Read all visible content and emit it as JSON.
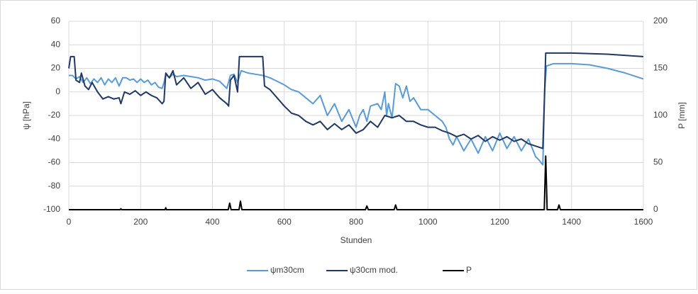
{
  "chart_data": {
    "type": "line",
    "xlabel": "Stunden",
    "ylabel": "ψ [hPa]",
    "y2label": "P [mm]",
    "xlim": [
      0,
      1600
    ],
    "xticks": [
      0,
      200,
      400,
      600,
      800,
      1000,
      1200,
      1400,
      1600
    ],
    "ylim": [
      -100,
      60
    ],
    "yticks": [
      -100,
      -80,
      -60,
      -40,
      -20,
      0,
      20,
      40,
      60
    ],
    "y2lim": [
      0,
      200
    ],
    "y2ticks": [
      0,
      50,
      100,
      150,
      200
    ],
    "grid": true,
    "legend": "bottom",
    "series": [
      {
        "name": "ψm30cm",
        "color": "#5b9bd5",
        "x": [
          0,
          10,
          20,
          30,
          40,
          50,
          60,
          70,
          80,
          90,
          100,
          110,
          120,
          130,
          140,
          150,
          160,
          170,
          180,
          190,
          200,
          210,
          220,
          230,
          240,
          250,
          260,
          265,
          270,
          280,
          290,
          300,
          320,
          340,
          360,
          380,
          400,
          420,
          440,
          450,
          460,
          470,
          480,
          500,
          520,
          540,
          560,
          580,
          600,
          620,
          640,
          660,
          680,
          700,
          720,
          740,
          760,
          780,
          800,
          810,
          820,
          830,
          840,
          860,
          870,
          880,
          885,
          890,
          900,
          910,
          920,
          930,
          940,
          950,
          960,
          980,
          1000,
          1020,
          1040,
          1050,
          1060,
          1070,
          1080,
          1100,
          1120,
          1140,
          1160,
          1180,
          1200,
          1220,
          1240,
          1260,
          1280,
          1300,
          1310,
          1320,
          1325,
          1330,
          1350,
          1400,
          1450,
          1500,
          1550,
          1600
        ],
        "values": [
          14,
          14,
          11,
          13,
          8,
          12,
          7,
          11,
          8,
          12,
          6,
          11,
          8,
          12,
          5,
          12,
          12,
          10,
          11,
          8,
          11,
          8,
          10,
          6,
          8,
          4,
          3,
          8,
          15,
          12,
          15,
          13,
          14,
          13,
          12,
          10,
          11,
          9,
          3,
          14,
          15,
          8,
          18,
          16,
          15,
          14,
          12,
          9,
          6,
          2,
          0,
          -5,
          -10,
          -3,
          -20,
          -10,
          -25,
          -15,
          -30,
          -20,
          -15,
          -25,
          -12,
          -10,
          -15,
          0,
          -20,
          -10,
          -22,
          7,
          5,
          -5,
          5,
          -8,
          -5,
          -15,
          -15,
          -20,
          -25,
          -30,
          -40,
          -45,
          -38,
          -50,
          -40,
          -52,
          -38,
          -50,
          -35,
          -48,
          -38,
          -50,
          -40,
          -55,
          -58,
          -62,
          0,
          22,
          24,
          24,
          23,
          20,
          16,
          11
        ]
      },
      {
        "name": "ψ30cm mod.",
        "color": "#203864",
        "x": [
          0,
          5,
          15,
          20,
          30,
          35,
          45,
          55,
          65,
          80,
          95,
          110,
          125,
          140,
          145,
          155,
          170,
          185,
          200,
          215,
          230,
          245,
          260,
          265,
          270,
          280,
          290,
          300,
          320,
          340,
          360,
          380,
          400,
          420,
          440,
          445,
          450,
          460,
          470,
          475,
          540,
          545,
          560,
          580,
          600,
          620,
          640,
          660,
          680,
          700,
          720,
          740,
          760,
          780,
          800,
          820,
          840,
          860,
          880,
          900,
          920,
          940,
          960,
          980,
          1000,
          1020,
          1040,
          1060,
          1080,
          1100,
          1120,
          1140,
          1160,
          1180,
          1200,
          1220,
          1240,
          1260,
          1280,
          1300,
          1320,
          1325,
          1328,
          1400,
          1500,
          1600
        ],
        "values": [
          20,
          30,
          30,
          10,
          8,
          16,
          5,
          2,
          8,
          0,
          -6,
          -4,
          -6,
          -5,
          -10,
          0,
          -2,
          1,
          -3,
          0,
          -3,
          -5,
          -10,
          -8,
          16,
          12,
          18,
          6,
          12,
          3,
          8,
          -2,
          2,
          -5,
          -10,
          -12,
          10,
          14,
          0,
          30,
          30,
          5,
          2,
          -5,
          -12,
          -18,
          -20,
          -25,
          -28,
          -25,
          -32,
          -27,
          -32,
          -28,
          -35,
          -32,
          -25,
          -30,
          -20,
          -22,
          -20,
          -25,
          -25,
          -28,
          -30,
          -30,
          -33,
          -35,
          -38,
          -36,
          -40,
          -37,
          -42,
          -38,
          -41,
          -38,
          -42,
          -40,
          -44,
          -46,
          -48,
          0,
          33,
          33,
          32,
          30
        ]
      },
      {
        "name": "P",
        "color": "#000000",
        "axis": "y2",
        "x": [
          0,
          143,
          145,
          147,
          268,
          270,
          272,
          444,
          448,
          452,
          474,
          478,
          482,
          826,
          830,
          834,
          906,
          910,
          914,
          1324,
          1328,
          1332,
          1361,
          1365,
          1369,
          1600
        ],
        "values": [
          0,
          0,
          1,
          0,
          0,
          2,
          0,
          0,
          7,
          0,
          0,
          9,
          0,
          0,
          4,
          0,
          0,
          5,
          0,
          0,
          57,
          0,
          0,
          5,
          0,
          0
        ]
      }
    ]
  }
}
